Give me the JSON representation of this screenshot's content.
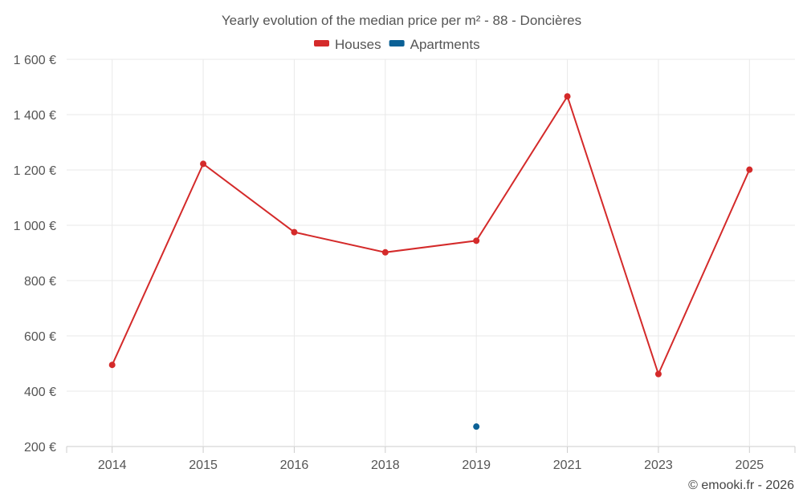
{
  "chart_data": {
    "type": "line",
    "title": "Yearly evolution of the median price per m² - 88 - Doncières",
    "categories": [
      "2014",
      "2015",
      "2016",
      "2018",
      "2019",
      "2021",
      "2023",
      "2025"
    ],
    "series": [
      {
        "name": "Houses",
        "color": "#d42a2a",
        "values": [
          495,
          1222,
          975,
          902,
          944,
          1466,
          462,
          1201
        ]
      },
      {
        "name": "Apartments",
        "color": "#0b6196",
        "values": [
          null,
          null,
          null,
          null,
          272,
          null,
          null,
          null
        ]
      }
    ],
    "ylim": [
      200,
      1600
    ],
    "yticks": [
      200,
      400,
      600,
      800,
      1000,
      1200,
      1400,
      1600
    ],
    "ytick_labels": [
      "200 €",
      "400 €",
      "600 €",
      "800 €",
      "1 000 €",
      "1 200 €",
      "1 400 €",
      "1 600 €"
    ],
    "grid": true,
    "legend_position": "top-center",
    "xlabel": "",
    "ylabel": ""
  },
  "credit": "© emooki.fr - 2026"
}
